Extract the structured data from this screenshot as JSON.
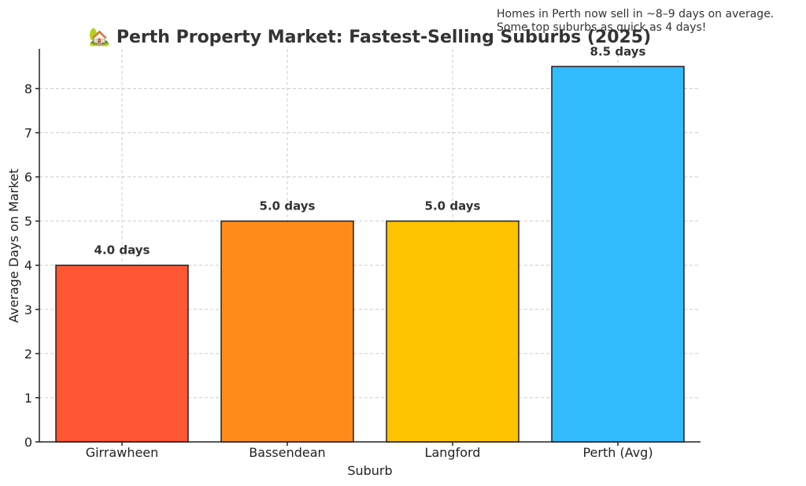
{
  "chart_data": {
    "type": "bar",
    "title": "🏡 Perth Property Market: Fastest-Selling Suburbs (2025)",
    "xlabel": "Suburb",
    "ylabel": "Average Days on Market",
    "categories": [
      "Girrawheen",
      "Bassendean",
      "Langford",
      "Perth (Avg)"
    ],
    "values": [
      4.0,
      5.0,
      5.0,
      8.5
    ],
    "data_labels": [
      "4.0 days",
      "5.0 days",
      "5.0 days",
      "8.5 days"
    ],
    "colors": [
      "#ff5733",
      "#ff8c1a",
      "#ffc300",
      "#33bbff"
    ],
    "ylim": [
      0,
      8.9
    ],
    "yticks": [
      0,
      1,
      2,
      3,
      4,
      5,
      6,
      7,
      8
    ],
    "grid": true,
    "annotation": [
      "Homes in Perth now sell in ~8–9 days on average.",
      "Some top suburbs as quick as 4 days!"
    ]
  }
}
